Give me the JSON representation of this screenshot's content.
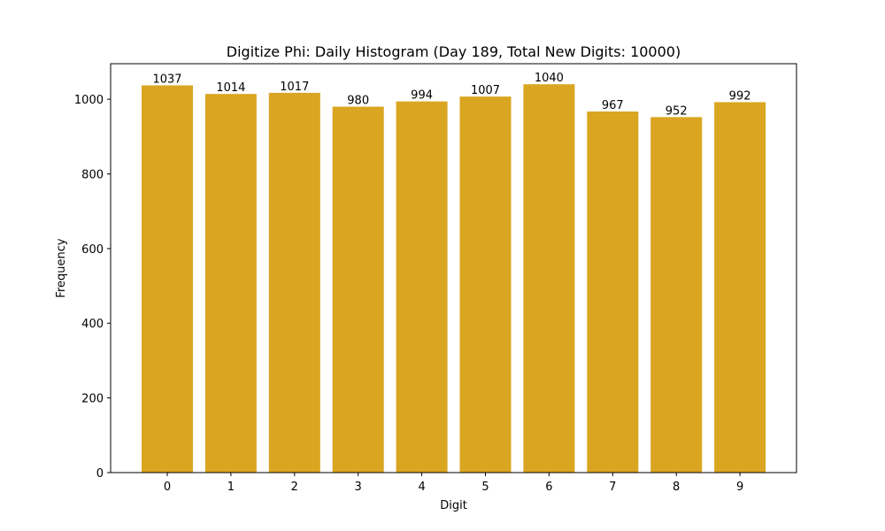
{
  "chart_data": {
    "type": "bar",
    "title": "Digitize Phi: Daily Histogram (Day 189, Total New Digits: 10000)",
    "xlabel": "Digit",
    "ylabel": "Frequency",
    "categories": [
      "0",
      "1",
      "2",
      "3",
      "4",
      "5",
      "6",
      "7",
      "8",
      "9"
    ],
    "values": [
      1037,
      1014,
      1017,
      980,
      994,
      1007,
      1040,
      967,
      952,
      992
    ],
    "ylim": [
      0,
      1095
    ],
    "yticks": [
      0,
      200,
      400,
      600,
      800,
      1000
    ],
    "bar_color": "#DAA520",
    "grid": false,
    "legend": null,
    "data_labels": true
  }
}
